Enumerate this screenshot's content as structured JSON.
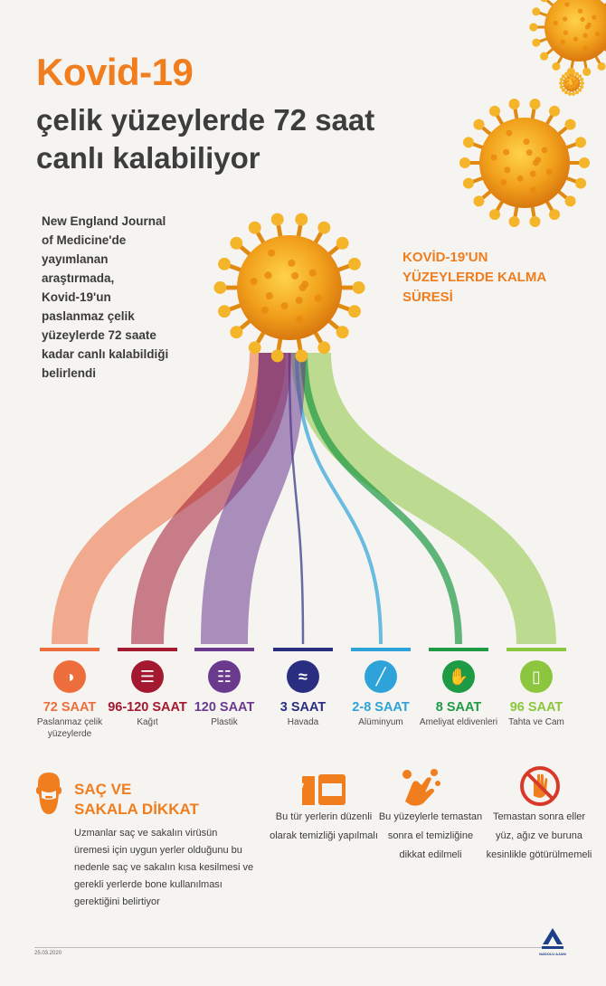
{
  "header": {
    "title": "Kovid-19",
    "subtitle_line1": "çelik yüzeylerde 72 saat",
    "subtitle_line2": "canlı kalabiliyor"
  },
  "intro": {
    "lines": [
      "New England Journal",
      "of Medicine'de",
      "yayımlanan",
      "araştırmada,",
      "Kovid-19'un",
      "paslanmaz çelik",
      "yüzeylerde 72 saate",
      "kadar canlı kalabildiği",
      "belirlendi"
    ]
  },
  "side_title": {
    "lines": [
      "KOVİD-19'UN",
      "YÜZEYLERDE KALMA",
      "SÜRESİ"
    ]
  },
  "surfaces": [
    {
      "hours": "72 SAAT",
      "label": "Paslanmaz çelik yüzeylerde",
      "color": "#ee6d3c",
      "icon": "pill-icon"
    },
    {
      "hours": "96-120 SAAT",
      "label": "Kağıt",
      "color": "#a3192f",
      "icon": "paper-icon"
    },
    {
      "hours": "120 SAAT",
      "label": "Plastik",
      "color": "#6a3a8f",
      "icon": "bottle-icon"
    },
    {
      "hours": "3 SAAT",
      "label": "Havada",
      "color": "#2a2e80",
      "icon": "air-icon"
    },
    {
      "hours": "2-8 SAAT",
      "label": "Alüminyum",
      "color": "#2da3d9",
      "icon": "foil-icon"
    },
    {
      "hours": "8 SAAT",
      "label": "Ameliyat eldivenleri",
      "color": "#1f9a45",
      "icon": "glove-icon"
    },
    {
      "hours": "96 SAAT",
      "label": "Tahta ve Cam",
      "color": "#8cc63f",
      "icon": "glass-icon"
    }
  ],
  "beard": {
    "title_line1": "SAÇ VE",
    "title_line2": "SAKALA DİKKAT",
    "text": "Uzmanlar saç ve sakalın virüsün üremesi için uygun yerler olduğunu bu nedenle saç ve sakalın kısa kesilmesi ve gerekli yerlerde bone kullanılması gerektiğini belirtiyor"
  },
  "tips": [
    {
      "text": "Bu tür yerlerin düzenli olarak temizliği yapılmalı",
      "icon": "spray-icon"
    },
    {
      "text": "Bu yüzeylerle temastan sonra el temizliğine dikkat edilmeli",
      "icon": "handwash-icon"
    },
    {
      "text": "Temastan sonra eller yüz, ağız ve buruna kesinlikle götürülmemeli",
      "icon": "no-touch-icon"
    }
  ],
  "footer": {
    "date": "25.03.2020",
    "logo_text": "ANADOLU AJANSI"
  },
  "colors": {
    "accent": "#f07d1e",
    "virus": "#f2a21c",
    "background": "#f6f4f1"
  }
}
